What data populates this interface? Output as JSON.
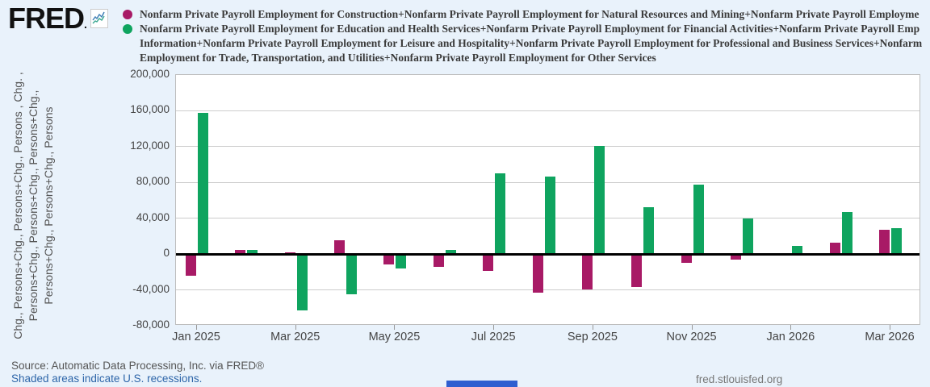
{
  "logo": {
    "text": "FRED",
    "suffix": "."
  },
  "legend": {
    "entries": [
      {
        "marker_color": "#a81a66",
        "lines": [
          "Nonfarm Private Payroll Employment for Construction+Nonfarm Private Payroll Employment for Natural Resources and Mining+Nonfarm Private Payroll Employme"
        ]
      },
      {
        "marker_color": "#0fa45f",
        "lines": [
          "Nonfarm Private Payroll Employment for Education and Health Services+Nonfarm Private Payroll Employment for Financial Activities+Nonfarm Private Payroll Emp",
          "Information+Nonfarm Private Payroll Employment for Leisure and Hospitality+Nonfarm Private Payroll Employment for Professional and Business Services+Nonfarm",
          "Employment for Trade, Transportation, and Utilities+Nonfarm Private Payroll Employment for Other Services"
        ]
      }
    ]
  },
  "y_axis": {
    "label_lines": [
      "Chg., Persons+Chg., Persons+Chg., Persons , Chg. ,",
      "Persons+Chg., Persons+Chg., Persons+Chg.,",
      "Persons+Chg., Persons+Chg., Persons"
    ]
  },
  "chart_data": {
    "type": "bar",
    "title": "",
    "categories": [
      "Jan 2025",
      "Feb 2025",
      "Mar 2025",
      "Apr 2025",
      "May 2025",
      "Jun 2025",
      "Jul 2025",
      "Aug 2025",
      "Sep 2025",
      "Oct 2025",
      "Nov 2025",
      "Dec 2025",
      "Jan 2026",
      "Feb 2026",
      "Mar 2026"
    ],
    "series": [
      {
        "name": "magenta-series",
        "color": "#a81a66",
        "values": [
          -23000,
          5000,
          2000,
          15000,
          -11000,
          -13000,
          -18000,
          -42000,
          -39000,
          -36000,
          -9000,
          -5000,
          0,
          13000,
          27000
        ]
      },
      {
        "name": "green-series",
        "color": "#0fa45f",
        "values": [
          158000,
          5000,
          -62000,
          -44000,
          -15000,
          5000,
          90000,
          87000,
          121000,
          52000,
          78000,
          40000,
          9000,
          47000,
          29000
        ]
      }
    ],
    "ylim": [
      -80000,
      200000
    ],
    "ytick_labels": [
      "200,000",
      "160,000",
      "120,000",
      "80,000",
      "40,000",
      "0",
      "-40,000",
      "-80,000"
    ],
    "xtick_labels": [
      "Jan 2025",
      "Mar 2025",
      "May 2025",
      "Jul 2025",
      "Sep 2025",
      "Nov 2025",
      "Jan 2026",
      "Mar 2026"
    ],
    "grid": true,
    "legend_position": "top"
  },
  "footer": {
    "source": "Source: Automatic Data Processing, Inc. via FRED®",
    "recession_note": "Shaded areas indicate U.S. recessions.",
    "site": "fred.stlouisfed.org"
  }
}
